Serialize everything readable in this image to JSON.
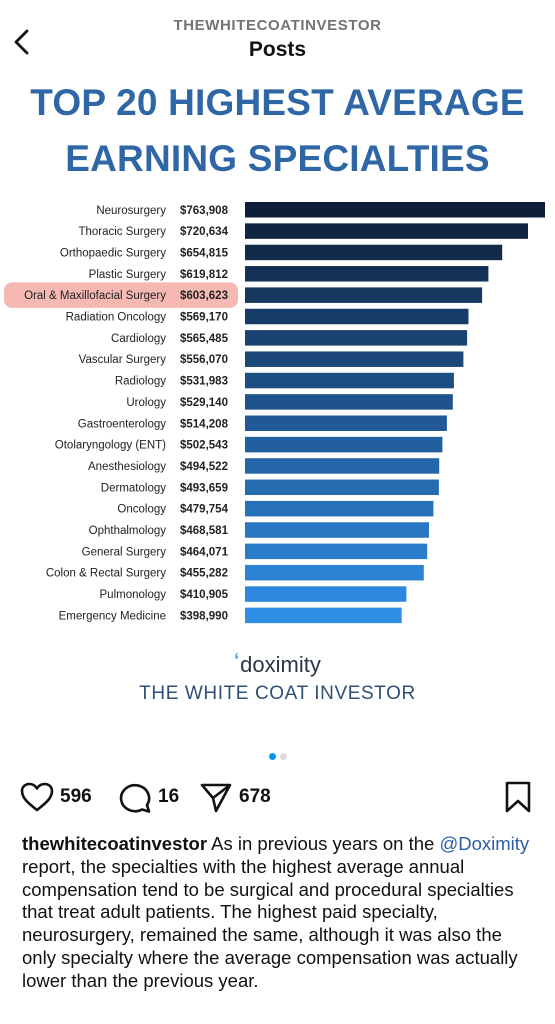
{
  "header": {
    "account": "THEWHITECOATINVESTOR",
    "title": "Posts"
  },
  "post": {
    "headline_line1": "TOP 20 HIGHEST AVERAGE",
    "headline_line2": "EARNING SPECIALTIES",
    "brand": "doximity",
    "footer_text": "THE WHITE COAT INVESTOR"
  },
  "chart_data": {
    "type": "bar",
    "orientation": "horizontal",
    "title": "TOP 20 HIGHEST AVERAGE EARNING SPECIALTIES",
    "highlighted_category": "Oral & Maxillofacial Surgery",
    "categories": [
      "Neurosurgery",
      "Thoracic Surgery",
      "Orthopaedic Surgery",
      "Plastic Surgery",
      "Oral & Maxillofacial Surgery",
      "Radiation Oncology",
      "Cardiology",
      "Vascular Surgery",
      "Radiology",
      "Urology",
      "Gastroenterology",
      "Otolaryngology (ENT)",
      "Anesthesiology",
      "Dermatology",
      "Oncology",
      "Ophthalmology",
      "General Surgery",
      "Colon & Rectal Surgery",
      "Pulmonology",
      "Emergency Medicine"
    ],
    "value_labels": [
      "$763,908",
      "$720,634",
      "$654,815",
      "$619,812",
      "$603,623",
      "$569,170",
      "$565,485",
      "$556,070",
      "$531,983",
      "$529,140",
      "$514,208",
      "$502,543",
      "$494,522",
      "$493,659",
      "$479,754",
      "$468,581",
      "$464,071",
      "$455,282",
      "$410,905",
      "$398,990"
    ],
    "values": [
      763908,
      720634,
      654815,
      619812,
      603623,
      569170,
      565485,
      556070,
      531983,
      529140,
      514208,
      502543,
      494522,
      493659,
      479754,
      468581,
      464071,
      455282,
      410905,
      398990
    ],
    "colors": {
      "darkest": "#0f1f3a",
      "lightest": "#2f8ee6",
      "highlight": "#f6b8b3"
    }
  },
  "carousel": {
    "total": 2,
    "active": 0
  },
  "actions": {
    "likes": "596",
    "comments": "16",
    "shares": "678"
  },
  "caption": {
    "username": "thewhitecoatinvestor",
    "text_before_mention": " As in previous years on the ",
    "mention": "@Doximity",
    "text_after_mention": " report, the specialties with the highest average annual compensation tend to be surgical and procedural specialties that treat adult patients. The highest paid specialty, neurosurgery, remained the same, although it was also the only specialty where the average compensation was actually lower than the previous year."
  }
}
